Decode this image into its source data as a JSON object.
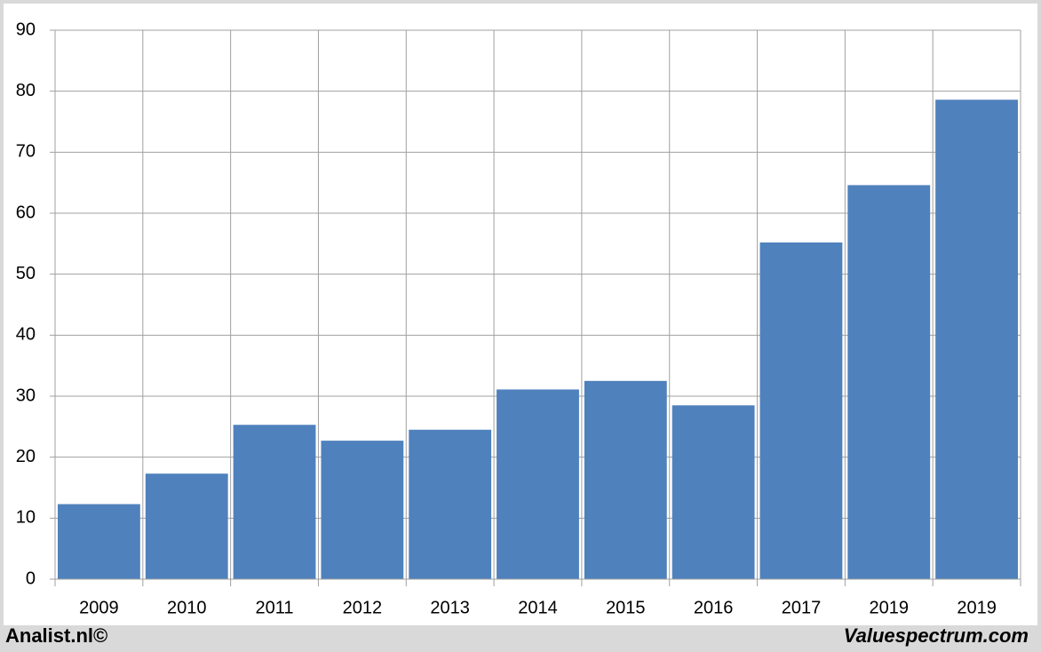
{
  "chart_data": {
    "type": "bar",
    "categories": [
      "2009",
      "2010",
      "2011",
      "2012",
      "2013",
      "2014",
      "2015",
      "2016",
      "2017",
      "2019",
      "2019"
    ],
    "values": [
      12.3,
      17.3,
      25.3,
      22.7,
      24.5,
      31.1,
      32.5,
      28.5,
      55.2,
      64.6,
      78.6
    ],
    "color": "#4f81bd",
    "ylim": [
      0,
      90
    ],
    "yticks": [
      0,
      10,
      20,
      30,
      40,
      50,
      60,
      70,
      80,
      90
    ],
    "grid": true,
    "source_left": "Analist.nl©",
    "source_right": "Valuespectrum.com"
  }
}
